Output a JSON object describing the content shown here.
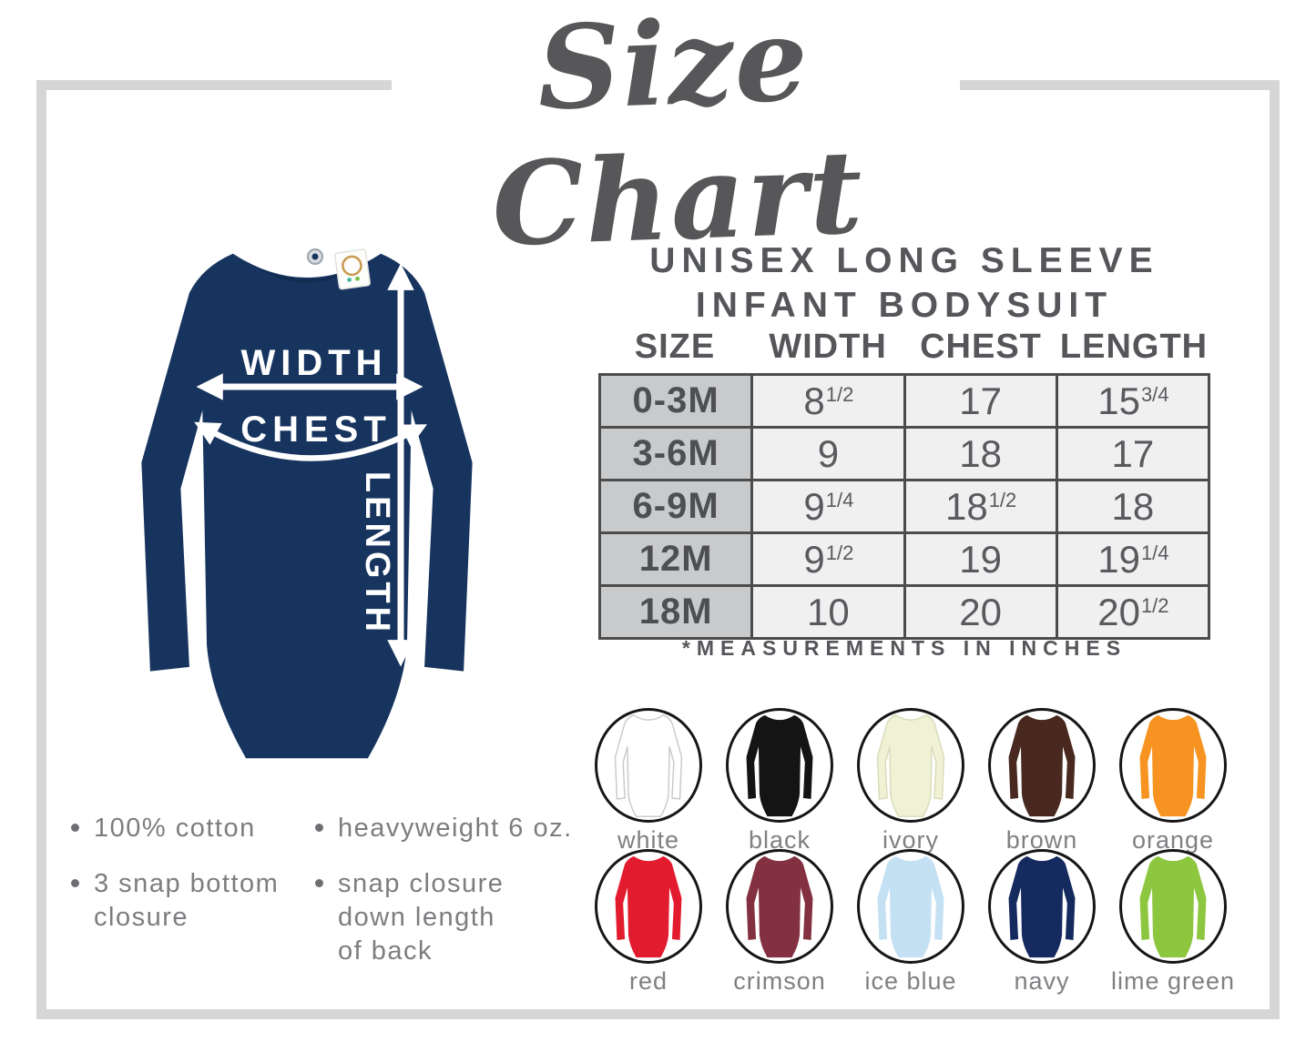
{
  "title": "Size Chart",
  "product": {
    "line1": "UNISEX LONG SLEEVE",
    "line2": "INFANT BODYSUIT"
  },
  "diagram": {
    "width_label": "WIDTH",
    "chest_label": "CHEST",
    "length_label": "LENGTH",
    "garment_color": "#17345f"
  },
  "size_table": {
    "columns": [
      "SIZE",
      "WIDTH",
      "CHEST",
      "LENGTH"
    ],
    "rows": [
      {
        "size": "0-3M",
        "width": "8",
        "width_frac": "1/2",
        "chest": "17",
        "chest_frac": "",
        "length": "15",
        "length_frac": "3/4"
      },
      {
        "size": "3-6M",
        "width": "9",
        "width_frac": "",
        "chest": "18",
        "chest_frac": "",
        "length": "17",
        "length_frac": ""
      },
      {
        "size": "6-9M",
        "width": "9",
        "width_frac": "1/4",
        "chest": "18",
        "chest_frac": "1/2",
        "length": "18",
        "length_frac": ""
      },
      {
        "size": "12M",
        "width": "9",
        "width_frac": "1/2",
        "chest": "19",
        "chest_frac": "",
        "length": "19",
        "length_frac": "1/4"
      },
      {
        "size": "18M",
        "width": "10",
        "width_frac": "",
        "chest": "20",
        "chest_frac": "",
        "length": "20",
        "length_frac": "1/2"
      }
    ],
    "footnote": "*MEASUREMENTS IN INCHES"
  },
  "features": {
    "col1": [
      "100% cotton",
      "3 snap bottom\ncloure"
    ],
    "col2": [
      "heavyweight 6 oz.",
      "snap closure\ndown length\nof back"
    ]
  },
  "features_fix": {
    "col1_item2": "3 snap bottom\nclosure"
  },
  "colors": {
    "row1": [
      {
        "name": "white",
        "hex": "#ffffff",
        "outline": "#c9c9c9"
      },
      {
        "name": "black",
        "hex": "#141414"
      },
      {
        "name": "ivory",
        "hex": "#f0f2d5",
        "outline": "#d9dbb9"
      },
      {
        "name": "brown",
        "hex": "#49291f"
      },
      {
        "name": "orange",
        "hex": "#f79421"
      }
    ],
    "row2": [
      {
        "name": "red",
        "hex": "#e21c2e"
      },
      {
        "name": "crimson",
        "hex": "#833140"
      },
      {
        "name": "ice blue",
        "hex": "#c4e1f4"
      },
      {
        "name": "navy",
        "hex": "#152a5f"
      },
      {
        "name": "lime green",
        "hex": "#8dc63f"
      }
    ]
  }
}
